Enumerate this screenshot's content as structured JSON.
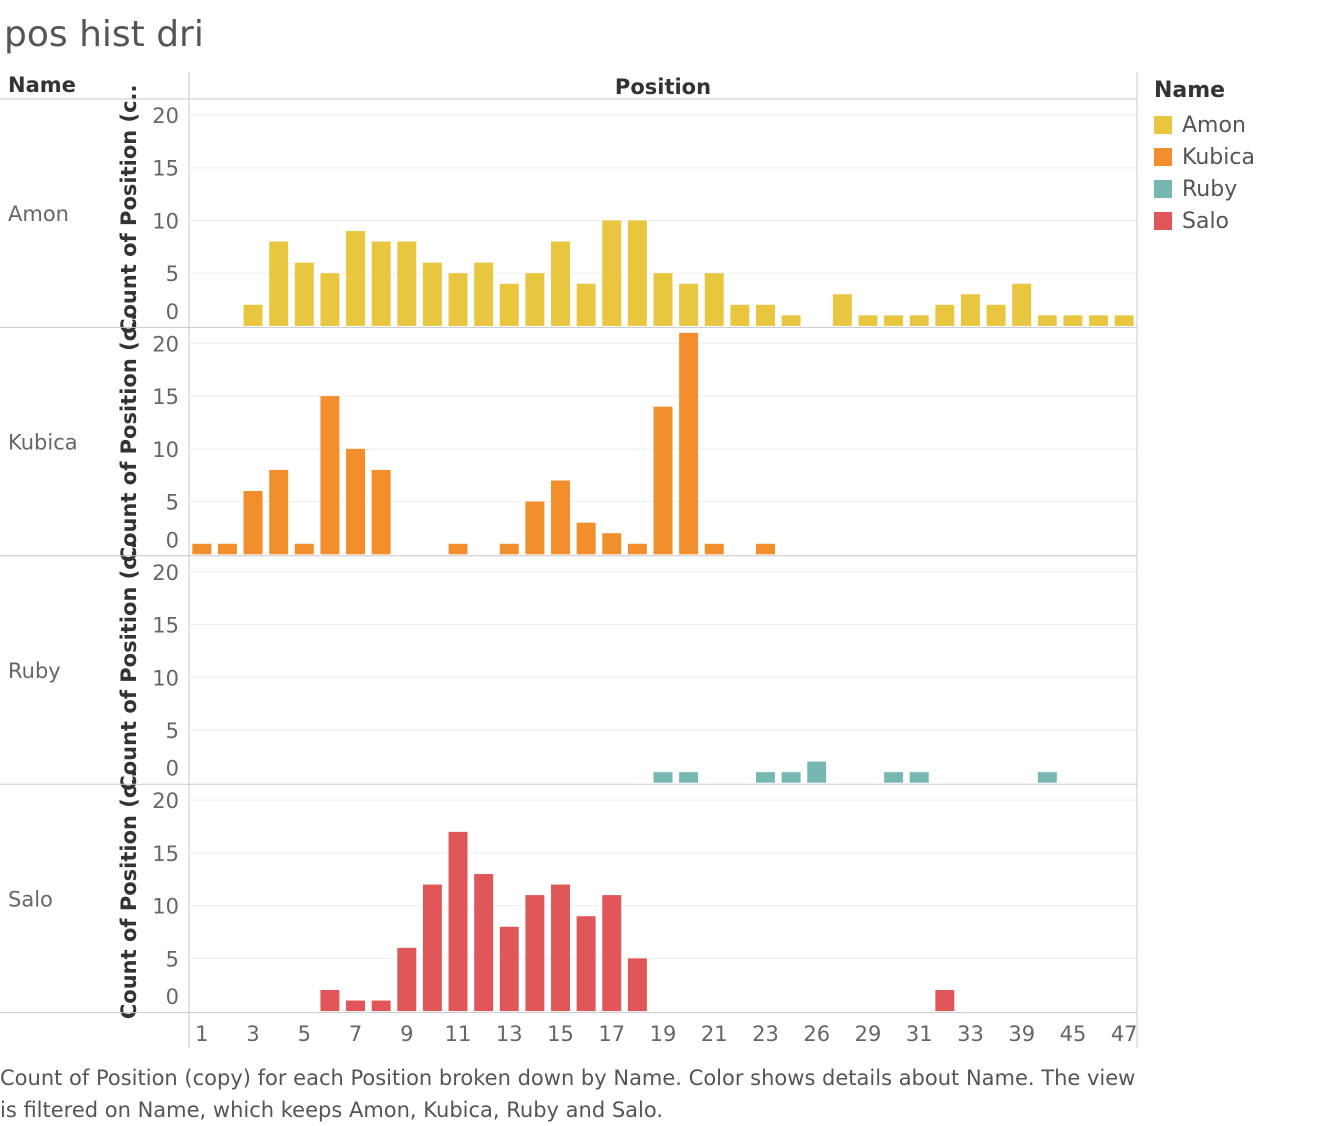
{
  "title": "pos hist dri",
  "caption": "Count of Position (copy) for each Position broken down by Name.  Color shows details about Name. The view is filtered on Name, which keeps Amon, Kubica, Ruby and Salo.",
  "legend": {
    "title": "Name",
    "items": [
      {
        "label": "Amon",
        "color": "#e9c640"
      },
      {
        "label": "Kubica",
        "color": "#f28e2b"
      },
      {
        "label": "Ruby",
        "color": "#76b7b2"
      },
      {
        "label": "Salo",
        "color": "#e15759"
      }
    ]
  },
  "chart_data": {
    "type": "bar",
    "row_header": "Name",
    "column_header": "Position",
    "ylabel": "Count of Position (c..",
    "ylim": [
      0,
      20
    ],
    "yticks": [
      0,
      5,
      10,
      15,
      20
    ],
    "categories": [
      "1",
      "2",
      "3",
      "4",
      "5",
      "6",
      "7",
      "8",
      "9",
      "10",
      "11",
      "12",
      "13",
      "14",
      "15",
      "16",
      "17",
      "18",
      "19",
      "20",
      "21",
      "22",
      "23",
      "24",
      "26",
      "27",
      "29",
      "30",
      "31",
      "32",
      "33",
      "34",
      "39",
      "40",
      "45",
      "46",
      "47"
    ],
    "tick_labels": [
      "1",
      "3",
      "5",
      "7",
      "9",
      "11",
      "13",
      "15",
      "17",
      "19",
      "21",
      "23",
      "26",
      "29",
      "31",
      "33",
      "39",
      "45",
      "47"
    ],
    "series": [
      {
        "name": "Amon",
        "color": "#e9c640",
        "values": [
          0,
          0,
          2,
          8,
          6,
          5,
          9,
          8,
          8,
          6,
          5,
          6,
          4,
          5,
          8,
          4,
          10,
          10,
          5,
          4,
          5,
          2,
          2,
          1,
          0,
          3,
          1,
          1,
          1,
          2,
          3,
          2,
          4,
          1,
          1,
          1,
          1
        ]
      },
      {
        "name": "Kubica",
        "color": "#f28e2b",
        "values": [
          1,
          1,
          6,
          8,
          1,
          15,
          10,
          8,
          0,
          0,
          1,
          0,
          1,
          5,
          7,
          3,
          2,
          1,
          14,
          21,
          1,
          0,
          1,
          0,
          0,
          0,
          0,
          0,
          0,
          0,
          0,
          0,
          0,
          0,
          0,
          0,
          0
        ]
      },
      {
        "name": "Ruby",
        "color": "#76b7b2",
        "values": [
          0,
          0,
          0,
          0,
          0,
          0,
          0,
          0,
          0,
          0,
          0,
          0,
          0,
          0,
          0,
          0,
          0,
          0,
          1,
          1,
          0,
          0,
          1,
          1,
          2,
          0,
          0,
          1,
          1,
          0,
          0,
          0,
          0,
          1,
          0,
          0,
          0
        ]
      },
      {
        "name": "Salo",
        "color": "#e15759",
        "values": [
          0,
          0,
          0,
          0,
          0,
          2,
          1,
          1,
          6,
          12,
          17,
          13,
          8,
          11,
          12,
          9,
          11,
          5,
          0,
          0,
          0,
          0,
          0,
          0,
          0,
          0,
          0,
          0,
          0,
          2,
          0,
          0,
          0,
          0,
          0,
          0,
          0
        ]
      }
    ]
  }
}
